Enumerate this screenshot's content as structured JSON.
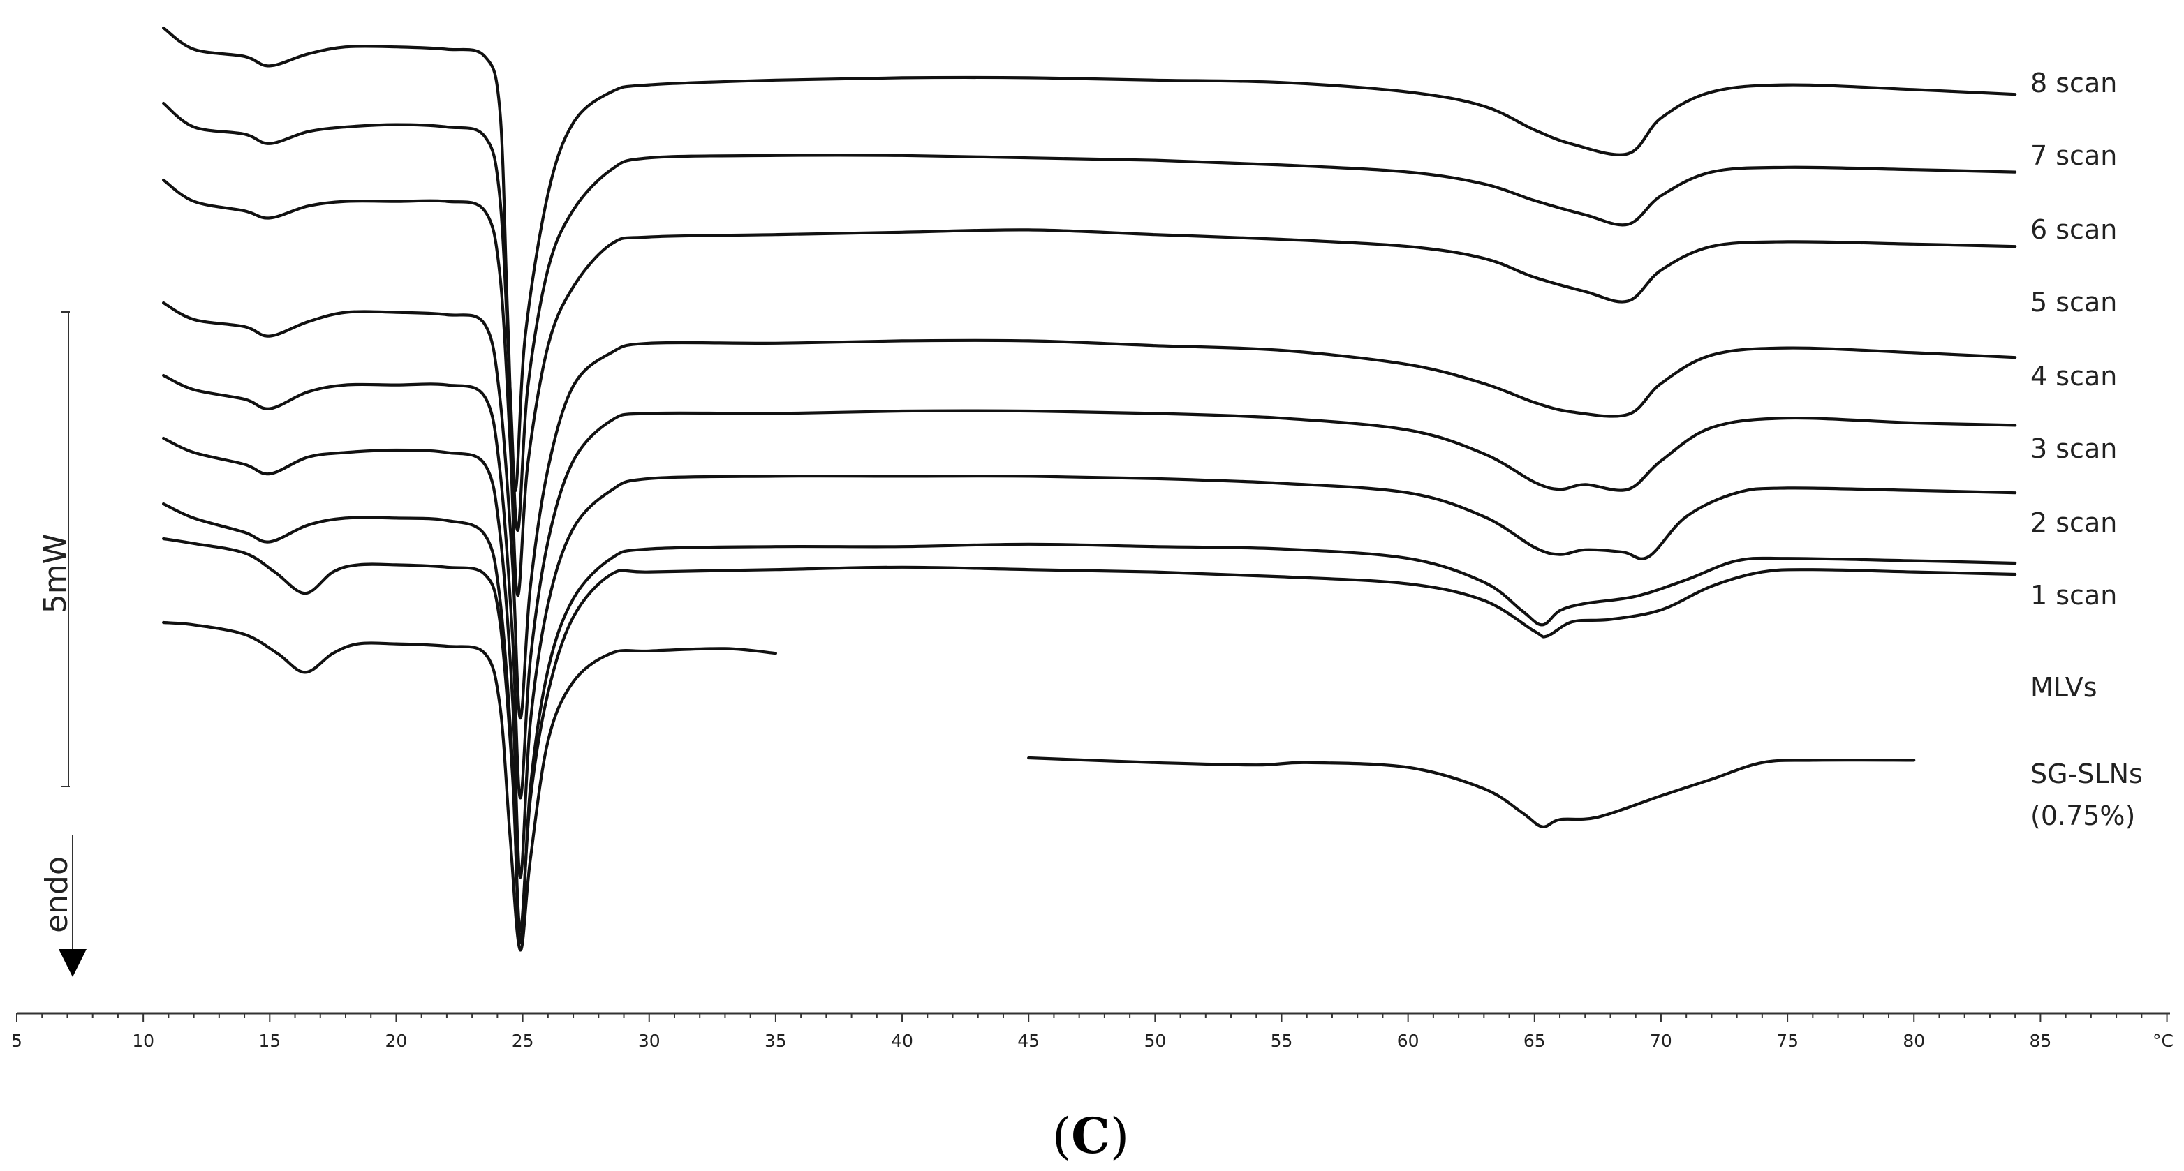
{
  "chart_data": {
    "type": "line",
    "title": "",
    "panel_label_open": "(",
    "panel_label_letter": "C",
    "panel_label_close": ")",
    "xlabel": "",
    "x_unit": "°C",
    "x_range": [
      5,
      90
    ],
    "x_ticks": [
      5,
      10,
      15,
      20,
      25,
      30,
      35,
      40,
      45,
      50,
      55,
      60,
      65,
      70,
      75,
      80,
      85
    ],
    "scale_bar_label": "5mW",
    "endo_label": "endo",
    "y_axis_offset_units": "arbitrary (curves vertically offset)",
    "series": [
      {
        "name": "8 scan",
        "points": [
          [
            10.8,
            0.0
          ],
          [
            12,
            -0.9
          ],
          [
            14,
            -1.2
          ],
          [
            15,
            -1.6
          ],
          [
            16.5,
            -1.1
          ],
          [
            18,
            -0.8
          ],
          [
            20,
            -0.8
          ],
          [
            22,
            -0.9
          ],
          [
            23.5,
            -1.2
          ],
          [
            24.1,
            -3.5
          ],
          [
            24.4,
            -12
          ],
          [
            24.7,
            -19.5
          ],
          [
            25.1,
            -13
          ],
          [
            26,
            -7
          ],
          [
            27,
            -4
          ],
          [
            28.5,
            -2.7
          ],
          [
            30,
            -2.4
          ],
          [
            35,
            -2.2
          ],
          [
            40,
            -2.1
          ],
          [
            45,
            -2.1
          ],
          [
            50,
            -2.2
          ],
          [
            55,
            -2.3
          ],
          [
            60,
            -2.7
          ],
          [
            63,
            -3.3
          ],
          [
            65,
            -4.3
          ],
          [
            66.5,
            -4.9
          ],
          [
            68.7,
            -5.3
          ],
          [
            70,
            -3.8
          ],
          [
            72,
            -2.7
          ],
          [
            75,
            -2.4
          ],
          [
            80,
            -2.6
          ],
          [
            84,
            -2.8
          ]
        ]
      },
      {
        "name": "7 scan",
        "points": [
          [
            10.8,
            0.0
          ],
          [
            12,
            -1.0
          ],
          [
            14,
            -1.3
          ],
          [
            15,
            -1.7
          ],
          [
            16.5,
            -1.2
          ],
          [
            18,
            -1.0
          ],
          [
            20,
            -0.9
          ],
          [
            22,
            -1.0
          ],
          [
            23.5,
            -1.4
          ],
          [
            24.1,
            -4
          ],
          [
            24.5,
            -12
          ],
          [
            24.8,
            -18
          ],
          [
            25.2,
            -12
          ],
          [
            26,
            -7
          ],
          [
            27,
            -4.5
          ],
          [
            28.5,
            -2.8
          ],
          [
            30,
            -2.3
          ],
          [
            35,
            -2.2
          ],
          [
            40,
            -2.2
          ],
          [
            45,
            -2.3
          ],
          [
            50,
            -2.4
          ],
          [
            55,
            -2.6
          ],
          [
            60,
            -2.9
          ],
          [
            63,
            -3.4
          ],
          [
            65,
            -4.1
          ],
          [
            67,
            -4.7
          ],
          [
            68.7,
            -5.1
          ],
          [
            70,
            -3.9
          ],
          [
            72,
            -2.9
          ],
          [
            75,
            -2.7
          ],
          [
            80,
            -2.8
          ],
          [
            84,
            -2.9
          ]
        ]
      },
      {
        "name": "6 scan",
        "points": [
          [
            10.8,
            0.0
          ],
          [
            12,
            -0.9
          ],
          [
            14,
            -1.3
          ],
          [
            15,
            -1.6
          ],
          [
            16.5,
            -1.1
          ],
          [
            18,
            -0.9
          ],
          [
            20,
            -0.9
          ],
          [
            22,
            -0.9
          ],
          [
            23.5,
            -1.3
          ],
          [
            24.1,
            -4
          ],
          [
            24.5,
            -11
          ],
          [
            24.8,
            -17.5
          ],
          [
            25.2,
            -12
          ],
          [
            26,
            -7
          ],
          [
            27,
            -4.5
          ],
          [
            28.5,
            -2.7
          ],
          [
            30,
            -2.4
          ],
          [
            35,
            -2.3
          ],
          [
            40,
            -2.2
          ],
          [
            45,
            -2.1
          ],
          [
            50,
            -2.3
          ],
          [
            55,
            -2.5
          ],
          [
            60,
            -2.8
          ],
          [
            63,
            -3.3
          ],
          [
            65,
            -4.1
          ],
          [
            67,
            -4.7
          ],
          [
            68.7,
            -5.1
          ],
          [
            70,
            -3.8
          ],
          [
            72,
            -2.8
          ],
          [
            75,
            -2.6
          ],
          [
            80,
            -2.7
          ],
          [
            84,
            -2.8
          ]
        ]
      },
      {
        "name": "5 scan",
        "points": [
          [
            10.8,
            0.0
          ],
          [
            12,
            -0.7
          ],
          [
            14,
            -1.0
          ],
          [
            15,
            -1.4
          ],
          [
            16.5,
            -0.8
          ],
          [
            18,
            -0.4
          ],
          [
            20,
            -0.4
          ],
          [
            22,
            -0.5
          ],
          [
            23.5,
            -0.9
          ],
          [
            24.1,
            -4
          ],
          [
            24.6,
            -11
          ],
          [
            24.9,
            -17.5
          ],
          [
            25.3,
            -12
          ],
          [
            26,
            -7
          ],
          [
            27,
            -3.5
          ],
          [
            28.5,
            -2.1
          ],
          [
            30,
            -1.7
          ],
          [
            35,
            -1.7
          ],
          [
            40,
            -1.6
          ],
          [
            45,
            -1.6
          ],
          [
            50,
            -1.8
          ],
          [
            55,
            -2.0
          ],
          [
            60,
            -2.6
          ],
          [
            63,
            -3.4
          ],
          [
            65,
            -4.2
          ],
          [
            66.5,
            -4.6
          ],
          [
            68.7,
            -4.7
          ],
          [
            70,
            -3.4
          ],
          [
            72,
            -2.2
          ],
          [
            75,
            -1.9
          ],
          [
            80,
            -2.1
          ],
          [
            84,
            -2.3
          ]
        ]
      },
      {
        "name": "4 scan",
        "points": [
          [
            10.8,
            0.0
          ],
          [
            12,
            -0.6
          ],
          [
            14,
            -1.0
          ],
          [
            15,
            -1.4
          ],
          [
            16.5,
            -0.7
          ],
          [
            18,
            -0.4
          ],
          [
            20,
            -0.4
          ],
          [
            22,
            -0.4
          ],
          [
            23.5,
            -0.9
          ],
          [
            24.1,
            -4
          ],
          [
            24.6,
            -11
          ],
          [
            24.9,
            -17.8
          ],
          [
            25.3,
            -12
          ],
          [
            26,
            -7
          ],
          [
            27,
            -3.6
          ],
          [
            28.5,
            -1.9
          ],
          [
            30,
            -1.6
          ],
          [
            35,
            -1.6
          ],
          [
            40,
            -1.5
          ],
          [
            45,
            -1.5
          ],
          [
            50,
            -1.6
          ],
          [
            55,
            -1.8
          ],
          [
            60,
            -2.3
          ],
          [
            63,
            -3.3
          ],
          [
            65,
            -4.5
          ],
          [
            66,
            -4.8
          ],
          [
            67,
            -4.6
          ],
          [
            68.7,
            -4.8
          ],
          [
            70,
            -3.6
          ],
          [
            72,
            -2.2
          ],
          [
            75,
            -1.8
          ],
          [
            80,
            -2.0
          ],
          [
            84,
            -2.1
          ]
        ]
      },
      {
        "name": "3 scan",
        "points": [
          [
            10.8,
            0.0
          ],
          [
            12,
            -0.6
          ],
          [
            14,
            -1.1
          ],
          [
            15,
            -1.5
          ],
          [
            16.5,
            -0.8
          ],
          [
            18,
            -0.6
          ],
          [
            20,
            -0.5
          ],
          [
            22,
            -0.6
          ],
          [
            23.5,
            -1.1
          ],
          [
            24.1,
            -4
          ],
          [
            24.6,
            -11
          ],
          [
            24.9,
            -18.5
          ],
          [
            25.3,
            -12
          ],
          [
            26,
            -7
          ],
          [
            27,
            -3.8
          ],
          [
            28.5,
            -2.2
          ],
          [
            30,
            -1.7
          ],
          [
            35,
            -1.6
          ],
          [
            40,
            -1.6
          ],
          [
            45,
            -1.6
          ],
          [
            50,
            -1.7
          ],
          [
            55,
            -1.9
          ],
          [
            60,
            -2.3
          ],
          [
            63,
            -3.3
          ],
          [
            65,
            -4.6
          ],
          [
            66,
            -4.9
          ],
          [
            67,
            -4.7
          ],
          [
            68.5,
            -4.8
          ],
          [
            69.5,
            -5.0
          ],
          [
            71,
            -3.3
          ],
          [
            73,
            -2.3
          ],
          [
            75,
            -2.1
          ],
          [
            80,
            -2.2
          ],
          [
            84,
            -2.3
          ]
        ]
      },
      {
        "name": "2 scan",
        "points": [
          [
            10.8,
            0.0
          ],
          [
            12,
            -0.6
          ],
          [
            14,
            -1.2
          ],
          [
            15,
            -1.6
          ],
          [
            16.5,
            -0.9
          ],
          [
            18,
            -0.6
          ],
          [
            20,
            -0.6
          ],
          [
            22,
            -0.7
          ],
          [
            23.5,
            -1.3
          ],
          [
            24.1,
            -4
          ],
          [
            24.6,
            -11
          ],
          [
            24.9,
            -18.5
          ],
          [
            25.3,
            -12
          ],
          [
            26,
            -7
          ],
          [
            27,
            -4
          ],
          [
            28.5,
            -2.3
          ],
          [
            30,
            -1.9
          ],
          [
            35,
            -1.8
          ],
          [
            40,
            -1.8
          ],
          [
            45,
            -1.7
          ],
          [
            50,
            -1.8
          ],
          [
            55,
            -1.9
          ],
          [
            60,
            -2.3
          ],
          [
            63,
            -3.3
          ],
          [
            64.5,
            -4.5
          ],
          [
            65.3,
            -5.1
          ],
          [
            66,
            -4.5
          ],
          [
            67,
            -4.2
          ],
          [
            69,
            -3.9
          ],
          [
            71,
            -3.2
          ],
          [
            73,
            -2.4
          ],
          [
            75,
            -2.3
          ],
          [
            80,
            -2.4
          ],
          [
            84,
            -2.5
          ]
        ]
      },
      {
        "name": "1 scan",
        "points": [
          [
            10.8,
            0.0
          ],
          [
            12,
            -0.2
          ],
          [
            14,
            -0.6
          ],
          [
            15.2,
            -1.4
          ],
          [
            16.4,
            -2.3
          ],
          [
            17.5,
            -1.4
          ],
          [
            18.5,
            -1.1
          ],
          [
            20,
            -1.1
          ],
          [
            22,
            -1.2
          ],
          [
            23.5,
            -1.5
          ],
          [
            24.1,
            -3.5
          ],
          [
            24.6,
            -10
          ],
          [
            24.9,
            -16.5
          ],
          [
            25.3,
            -11
          ],
          [
            26,
            -6.5
          ],
          [
            27,
            -3.3
          ],
          [
            28.5,
            -1.5
          ],
          [
            30,
            -1.4
          ],
          [
            35,
            -1.3
          ],
          [
            40,
            -1.2
          ],
          [
            45,
            -1.3
          ],
          [
            50,
            -1.4
          ],
          [
            55,
            -1.6
          ],
          [
            60,
            -1.9
          ],
          [
            63,
            -2.6
          ],
          [
            65,
            -3.9
          ],
          [
            65.5,
            -4.1
          ],
          [
            66.5,
            -3.5
          ],
          [
            68,
            -3.4
          ],
          [
            70,
            -3.0
          ],
          [
            72,
            -2.0
          ],
          [
            74,
            -1.4
          ],
          [
            76,
            -1.3
          ],
          [
            80,
            -1.4
          ],
          [
            84,
            -1.5
          ]
        ]
      },
      {
        "name": "MLVs",
        "points": [
          [
            10.8,
            0.0
          ],
          [
            12,
            -0.1
          ],
          [
            14,
            -0.5
          ],
          [
            15.3,
            -1.3
          ],
          [
            16.4,
            -2.1
          ],
          [
            17.5,
            -1.3
          ],
          [
            18.5,
            -0.9
          ],
          [
            20,
            -0.9
          ],
          [
            22,
            -1.0
          ],
          [
            23.5,
            -1.3
          ],
          [
            24.1,
            -3.5
          ],
          [
            24.5,
            -9
          ],
          [
            24.9,
            -13.8
          ],
          [
            25.3,
            -10
          ],
          [
            26,
            -5
          ],
          [
            27,
            -2.5
          ],
          [
            28.5,
            -1.3
          ],
          [
            30,
            -1.2
          ],
          [
            33,
            -1.1
          ],
          [
            35,
            -1.3
          ]
        ]
      },
      {
        "name": "SG-SLNs (0.75%)",
        "name_lines": [
          "SG-SLNs",
          "(0.75%)"
        ],
        "points": [
          [
            45,
            0.0
          ],
          [
            50,
            -0.2
          ],
          [
            54,
            -0.3
          ],
          [
            56,
            -0.2
          ],
          [
            60,
            -0.4
          ],
          [
            63,
            -1.3
          ],
          [
            64.5,
            -2.3
          ],
          [
            65.3,
            -2.9
          ],
          [
            66,
            -2.6
          ],
          [
            67.5,
            -2.5
          ],
          [
            70,
            -1.6
          ],
          [
            72,
            -0.9
          ],
          [
            74,
            -0.2
          ],
          [
            76,
            -0.1
          ],
          [
            80,
            -0.1
          ]
        ]
      }
    ]
  }
}
